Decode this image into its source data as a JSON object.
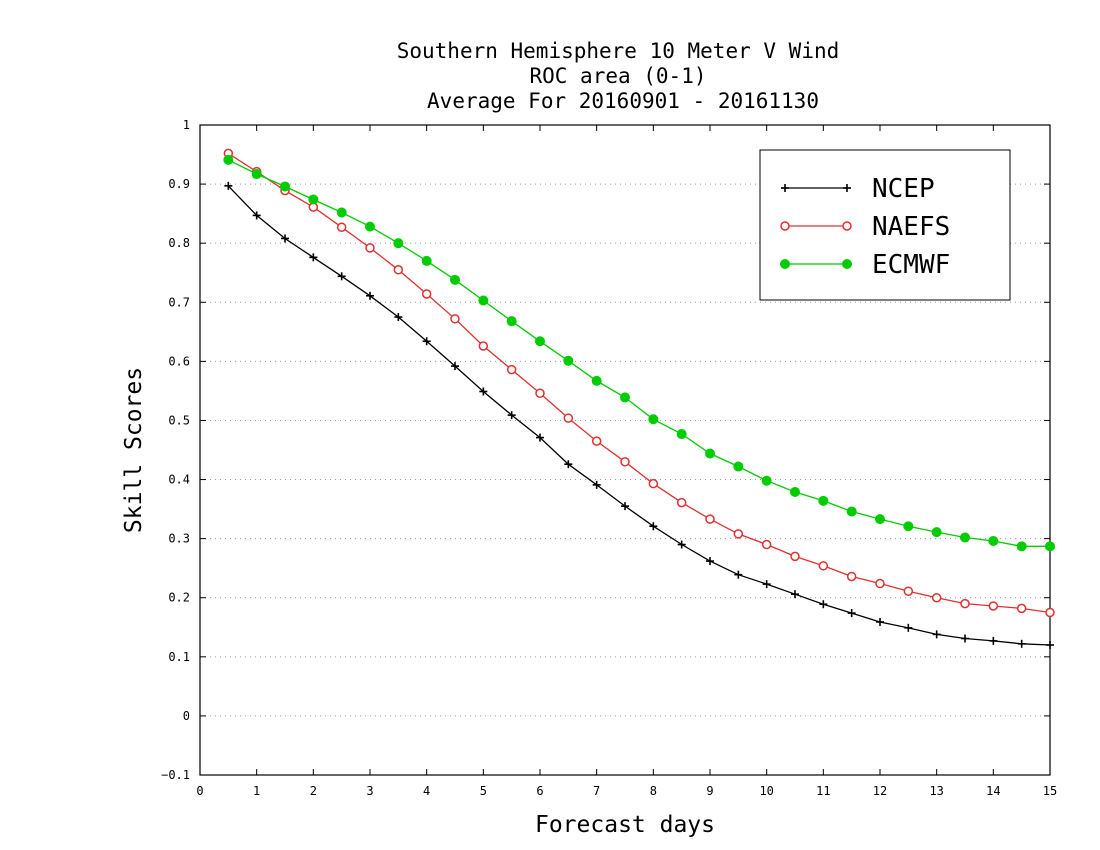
{
  "chart_data": {
    "type": "line",
    "title": [
      "Southern Hemisphere 10 Meter V Wind",
      "ROC area (0-1)",
      "Average For 20160901 - 20161130"
    ],
    "xlabel": "Forecast days",
    "ylabel": "Skill Scores",
    "xlim": [
      0,
      15
    ],
    "ylim": [
      -0.1,
      1
    ],
    "xticks": [
      "0",
      "1",
      "2",
      "3",
      "4",
      "5",
      "6",
      "7",
      "8",
      "9",
      "10",
      "11",
      "12",
      "13",
      "14",
      "15"
    ],
    "yticks": [
      "−0.1",
      "0",
      "0.1",
      "0.2",
      "0.3",
      "0.4",
      "0.5",
      "0.6",
      "0.7",
      "0.8",
      "0.9",
      "1"
    ],
    "grid": "dotted horizontal",
    "legend_position": "top-right",
    "x": [
      0.5,
      1,
      1.5,
      2,
      2.5,
      3,
      3.5,
      4,
      4.5,
      5,
      5.5,
      6,
      6.5,
      7,
      7.5,
      8,
      8.5,
      9,
      9.5,
      10,
      10.5,
      11,
      11.5,
      12,
      12.5,
      13,
      13.5,
      14,
      14.5,
      15
    ],
    "series": [
      {
        "name": "NCEP",
        "color": "#000000",
        "marker": "plus",
        "values": [
          0.897,
          0.847,
          0.808,
          0.776,
          0.744,
          0.711,
          0.675,
          0.634,
          0.592,
          0.549,
          0.509,
          0.471,
          0.426,
          0.391,
          0.355,
          0.321,
          0.29,
          0.262,
          0.239,
          0.223,
          0.206,
          0.189,
          0.174,
          0.159,
          0.149,
          0.138,
          0.131,
          0.127,
          0.122,
          0.12
        ]
      },
      {
        "name": "NAEFS",
        "color": "#e03030",
        "marker": "open-circle",
        "values": [
          0.952,
          0.921,
          0.889,
          0.861,
          0.827,
          0.792,
          0.755,
          0.714,
          0.672,
          0.626,
          0.586,
          0.546,
          0.504,
          0.465,
          0.43,
          0.393,
          0.361,
          0.333,
          0.308,
          0.29,
          0.27,
          0.254,
          0.236,
          0.224,
          0.211,
          0.2,
          0.19,
          0.186,
          0.182,
          0.175
        ]
      },
      {
        "name": "ECMWF",
        "color": "#00cc00",
        "marker": "filled-circle",
        "values": [
          0.941,
          0.917,
          0.896,
          0.874,
          0.852,
          0.828,
          0.8,
          0.77,
          0.738,
          0.703,
          0.668,
          0.634,
          0.601,
          0.567,
          0.539,
          0.502,
          0.477,
          0.444,
          0.422,
          0.398,
          0.379,
          0.364,
          0.346,
          0.333,
          0.321,
          0.311,
          0.302,
          0.296,
          0.287,
          0.287
        ]
      }
    ]
  }
}
